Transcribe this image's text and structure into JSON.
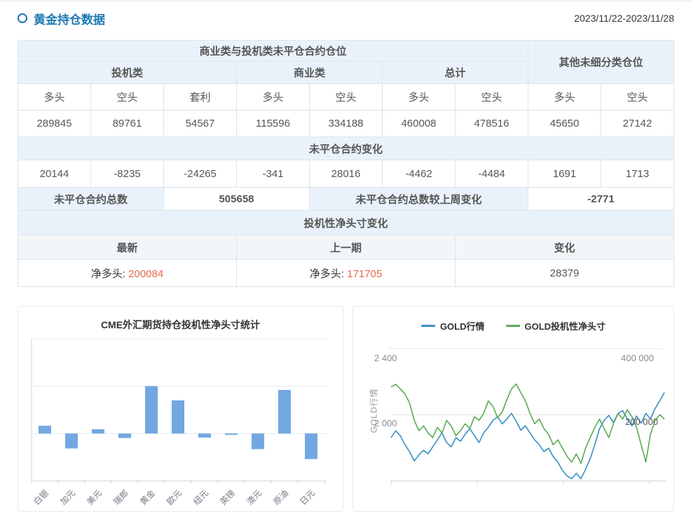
{
  "page": {
    "title": "黄金持仓数据",
    "date_range": "2023/11/22-2023/11/28"
  },
  "colors": {
    "accent_blue": "#2579ae",
    "positive_orange": "#e5694c",
    "negative_green": "#27a385",
    "header_bg": "#e9f2fa",
    "table_border": "#d9e5ef"
  },
  "table": {
    "header_main": "商业类与投机类未平仓合约仓位",
    "header_other": "其他未细分类仓位",
    "group_headers": [
      "投机类",
      "商业类",
      "总计"
    ],
    "col_headers": [
      "多头",
      "空头",
      "套利",
      "多头",
      "空头",
      "多头",
      "空头",
      "多头",
      "空头"
    ],
    "positions": [
      "289845",
      "89761",
      "54567",
      "115596",
      "334188",
      "460008",
      "478516",
      "45650",
      "27142"
    ],
    "change_header": "未平仓合约变化",
    "changes": [
      "20144",
      "-8235",
      "-24265",
      "-341",
      "28016",
      "-4462",
      "-4484",
      "1691",
      "1713"
    ],
    "total_label": "未平仓合约总数",
    "total_value": "505658",
    "weekly_change_label": "未平仓合约总数较上周变化",
    "weekly_change_value": "-2771",
    "net_section_header": "投机性净头寸变化",
    "net_col_headers": [
      "最新",
      "上一期",
      "变化"
    ],
    "net_latest_label": "净多头:",
    "net_latest_value": "200084",
    "net_prev_label": "净多头:",
    "net_prev_value": "171705",
    "net_change_value": "28379"
  },
  "chart_data": [
    {
      "type": "bar",
      "title": "CME外汇期货持仓投机性净头寸统计",
      "categories": [
        "白银",
        "加元",
        "美元",
        "瑞郎",
        "黄金",
        "欧元",
        "纽元",
        "英镑",
        "澳元",
        "原油",
        "日元"
      ],
      "values": [
        33000,
        -63000,
        18000,
        -19000,
        200084,
        140000,
        -17000,
        -6000,
        -66000,
        184000,
        -108000
      ],
      "ylim": [
        -200000,
        400000
      ],
      "gridline_values": [
        400000,
        200000,
        0,
        -200000
      ],
      "color": "#72a8e1",
      "xlabel": "",
      "ylabel": "",
      "grid": true,
      "legend_position": "none"
    },
    {
      "type": "line",
      "title": "",
      "legend_position": "top",
      "ylabel_left": "GOLD行情",
      "yaxis_left": {
        "labels": [
          "2 400",
          "2 000"
        ],
        "lim": [
          1600,
          2400
        ],
        "gridline": 2000
      },
      "yaxis_right": {
        "labels": [
          "400 000",
          "200 000"
        ],
        "lim": [
          0,
          400000
        ],
        "gridline": 200000
      },
      "x": "weekly observations (unlabeled axis, 4 ticks)",
      "series": [
        {
          "name": "GOLD行情",
          "axis": "left",
          "color": "#3a8ec5",
          "values": [
            1861,
            1903,
            1874,
            1819,
            1777,
            1722,
            1756,
            1785,
            1764,
            1806,
            1848,
            1891,
            1832,
            1806,
            1861,
            1840,
            1882,
            1916,
            1874,
            1832,
            1891,
            1924,
            1966,
            1987,
            1945,
            1975,
            2008,
            1962,
            1907,
            1933,
            1891,
            1848,
            1819,
            1777,
            1798,
            1747,
            1714,
            1663,
            1630,
            1613,
            1646,
            1613,
            1671,
            1735,
            1819,
            1916,
            1966,
            1996,
            1954,
            2008,
            2025,
            1975,
            1933,
            1992,
            1949,
            2008,
            1975,
            2038,
            2084,
            2135
          ]
        },
        {
          "name": "GOLD投机性净头寸",
          "axis": "right",
          "color": "#5aab54",
          "values": [
            284000,
            292000,
            278000,
            263000,
            236000,
            183000,
            152000,
            166000,
            145000,
            131000,
            162000,
            145000,
            183000,
            166000,
            137000,
            152000,
            173000,
            158000,
            194000,
            183000,
            204000,
            242000,
            225000,
            192000,
            208000,
            246000,
            278000,
            293000,
            267000,
            242000,
            204000,
            173000,
            187000,
            158000,
            141000,
            109000,
            124000,
            99000,
            74000,
            57000,
            82000,
            53000,
            99000,
            131000,
            162000,
            187000,
            158000,
            131000,
            173000,
            204000,
            187000,
            215000,
            194000,
            162000,
            109000,
            57000,
            141000,
            183000,
            200084,
            187000
          ]
        }
      ]
    }
  ]
}
